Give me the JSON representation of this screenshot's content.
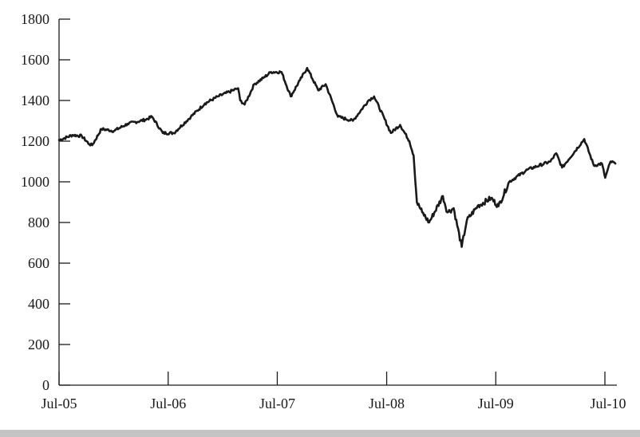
{
  "chart_data": {
    "type": "line",
    "title": "",
    "xlabel": "",
    "ylabel": "",
    "ylim": [
      0,
      1800
    ],
    "yticks": [
      0,
      200,
      400,
      600,
      800,
      1000,
      1200,
      1400,
      1600,
      1800
    ],
    "ytick_labels": [
      "0",
      "200",
      "400",
      "600",
      "800",
      "1000",
      "1200",
      "1400",
      "1600",
      "1800"
    ],
    "xlim": [
      "2005-07-01",
      "2010-08-10"
    ],
    "xticks": [
      "2005-07-01",
      "2006-07-01",
      "2007-07-01",
      "2008-07-01",
      "2009-07-01",
      "2010-07-01"
    ],
    "xtick_labels": [
      "Jul-05",
      "Jul-06",
      "Jul-07",
      "Jul-08",
      "Jul-09",
      "Jul-10"
    ],
    "grid": false,
    "legend": false,
    "line_color": "#1a1a1a",
    "series": [
      {
        "x": [
          "2005-07-01",
          "2005-08-15",
          "2005-09-15",
          "2005-10-10",
          "2005-10-20",
          "2005-11-20",
          "2005-12-31",
          "2006-02-15",
          "2006-04-15",
          "2006-05-08",
          "2006-06-13",
          "2006-07-20",
          "2006-09-15",
          "2006-11-01",
          "2006-12-15",
          "2007-02-20",
          "2007-02-27",
          "2007-03-14",
          "2007-04-15",
          "2007-05-15",
          "2007-06-10",
          "2007-07-15",
          "2007-08-15",
          "2007-09-15",
          "2007-10-09",
          "2007-11-15",
          "2007-12-10",
          "2008-01-20",
          "2008-03-10",
          "2008-05-01",
          "2008-05-20",
          "2008-07-15",
          "2008-08-15",
          "2008-09-15",
          "2008-09-29",
          "2008-10-10",
          "2008-10-28",
          "2008-11-20",
          "2009-01-05",
          "2009-01-20",
          "2009-02-10",
          "2009-03-09",
          "2009-03-26",
          "2009-05-01",
          "2009-06-15",
          "2009-07-10",
          "2009-08-15",
          "2009-10-15",
          "2009-12-31",
          "2010-01-19",
          "2010-02-08",
          "2010-04-23",
          "2010-05-25",
          "2010-06-21",
          "2010-07-02",
          "2010-07-20",
          "2010-08-05"
        ],
        "y": [
          1205,
          1230,
          1225,
          1185,
          1180,
          1260,
          1250,
          1285,
          1305,
          1320,
          1240,
          1240,
          1320,
          1385,
          1420,
          1460,
          1400,
          1380,
          1480,
          1510,
          1540,
          1540,
          1420,
          1500,
          1560,
          1450,
          1480,
          1320,
          1300,
          1400,
          1420,
          1240,
          1280,
          1200,
          1130,
          900,
          850,
          800,
          930,
          850,
          870,
          680,
          810,
          880,
          920,
          880,
          1000,
          1060,
          1100,
          1140,
          1070,
          1210,
          1080,
          1090,
          1020,
          1100,
          1090
        ]
      }
    ]
  }
}
